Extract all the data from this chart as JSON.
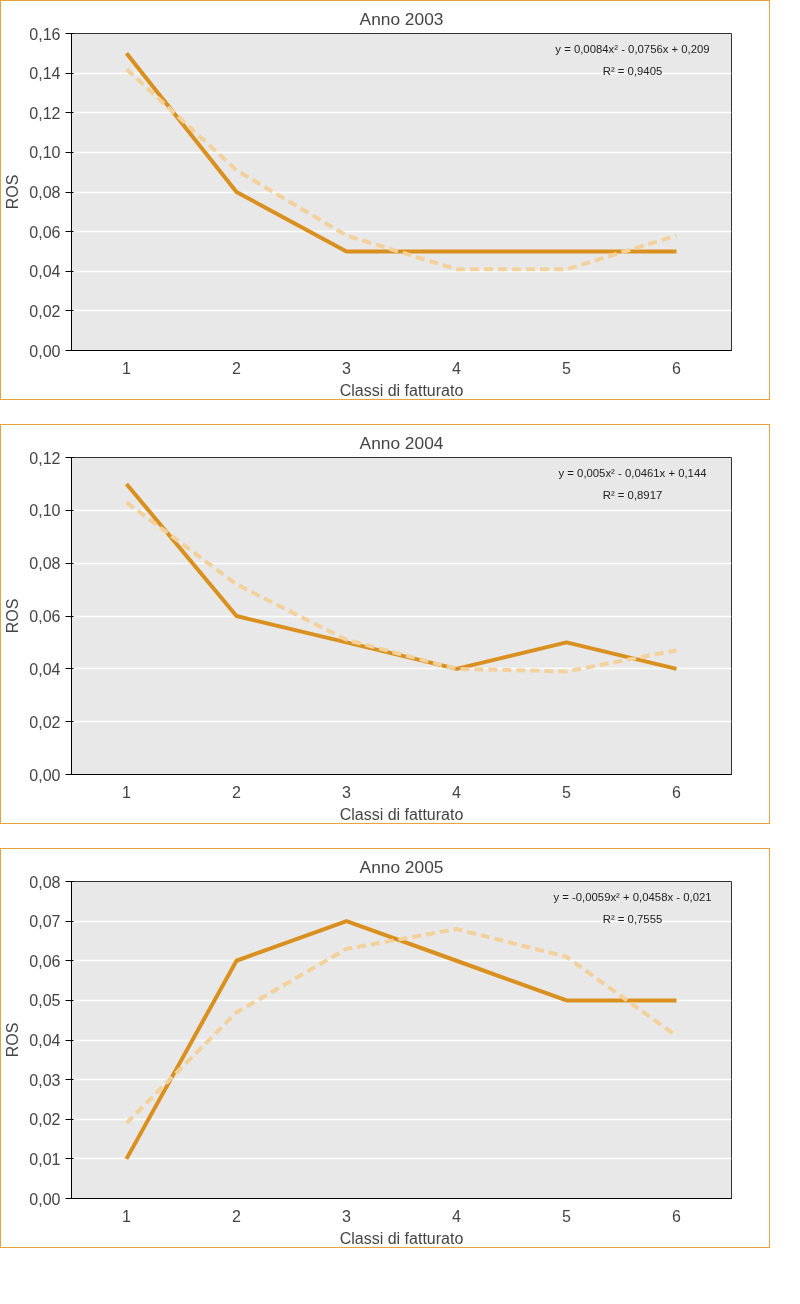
{
  "chart_data": [
    {
      "type": "line",
      "title": "Anno 2003",
      "xlabel": "Classi di fatturato",
      "ylabel": "ROS",
      "categories": [
        "1",
        "2",
        "3",
        "4",
        "5",
        "6"
      ],
      "series": [
        {
          "color": "#d9901f",
          "values": [
            0.15,
            0.08,
            0.05,
            0.05,
            0.05,
            0.05
          ]
        },
        {
          "type": "line",
          "line_style": "dashed",
          "color": "#f2d19c",
          "x": [
            "1",
            "2",
            "3",
            "4",
            "5",
            "6"
          ],
          "values": [
            0.142,
            0.091,
            0.058,
            0.041,
            0.041,
            0.058
          ]
        }
      ],
      "ylim": [
        0,
        0.16
      ],
      "yticks": [
        {
          "value": 0,
          "label": "0,00"
        },
        {
          "value": 0.02,
          "label": "0,02"
        },
        {
          "value": 0.04,
          "label": "0,04"
        },
        {
          "value": 0.06,
          "label": "0,06"
        },
        {
          "value": 0.08,
          "label": "0,08"
        },
        {
          "value": 0.1,
          "label": "0,10"
        },
        {
          "value": 0.12,
          "label": "0,12"
        },
        {
          "value": 0.14,
          "label": "0,14"
        },
        {
          "value": 0.16,
          "label": "0,16"
        }
      ],
      "annotations": [
        "y = 0,0084x² - 0,0756x + 0,209",
        "R² = 0,9405"
      ],
      "grid": "y"
    },
    {
      "type": "line",
      "title": "Anno 2004",
      "xlabel": "Classi di fatturato",
      "ylabel": "ROS",
      "categories": [
        "1",
        "2",
        "3",
        "4",
        "5",
        "6"
      ],
      "series": [
        {
          "color": "#d9901f",
          "values": [
            0.11,
            0.06,
            0.05,
            0.04,
            0.05,
            0.04
          ]
        },
        {
          "type": "line",
          "line_style": "dashed",
          "color": "#f2d19c",
          "x": [
            "1",
            "2",
            "3",
            "4",
            "5",
            "6"
          ],
          "values": [
            0.103,
            0.072,
            0.051,
            0.04,
            0.039,
            0.047
          ]
        }
      ],
      "ylim": [
        0,
        0.12
      ],
      "yticks": [
        {
          "value": 0,
          "label": "0,00"
        },
        {
          "value": 0.02,
          "label": "0,02"
        },
        {
          "value": 0.04,
          "label": "0,04"
        },
        {
          "value": 0.06,
          "label": "0,06"
        },
        {
          "value": 0.08,
          "label": "0,08"
        },
        {
          "value": 0.1,
          "label": "0,10"
        },
        {
          "value": 0.12,
          "label": "0,12"
        }
      ],
      "annotations": [
        "y = 0,005x² - 0,0461x + 0,144",
        "R² = 0,8917"
      ],
      "grid": "y"
    },
    {
      "type": "line",
      "title": "Anno 2005",
      "xlabel": "Classi di fatturato",
      "ylabel": "ROS",
      "categories": [
        "1",
        "2",
        "3",
        "4",
        "5",
        "6"
      ],
      "series": [
        {
          "color": "#d9901f",
          "values": [
            0.01,
            0.06,
            0.07,
            0.06,
            0.05,
            0.05
          ]
        },
        {
          "type": "line",
          "line_style": "dashed",
          "color": "#f2d19c",
          "x": [
            "1",
            "2",
            "3",
            "4",
            "5",
            "6"
          ],
          "values": [
            0.019,
            0.047,
            0.063,
            0.068,
            0.061,
            0.041
          ]
        }
      ],
      "ylim": [
        0,
        0.08
      ],
      "yticks": [
        {
          "value": 0,
          "label": "0,00"
        },
        {
          "value": 0.01,
          "label": "0,01"
        },
        {
          "value": 0.02,
          "label": "0,02"
        },
        {
          "value": 0.03,
          "label": "0,03"
        },
        {
          "value": 0.04,
          "label": "0,04"
        },
        {
          "value": 0.05,
          "label": "0,05"
        },
        {
          "value": 0.06,
          "label": "0,06"
        },
        {
          "value": 0.07,
          "label": "0,07"
        },
        {
          "value": 0.08,
          "label": "0,08"
        }
      ],
      "annotations": [
        "y = -0,0059x² + 0,0458x - 0,021",
        "R² = 0,7555"
      ],
      "grid": "y"
    }
  ]
}
